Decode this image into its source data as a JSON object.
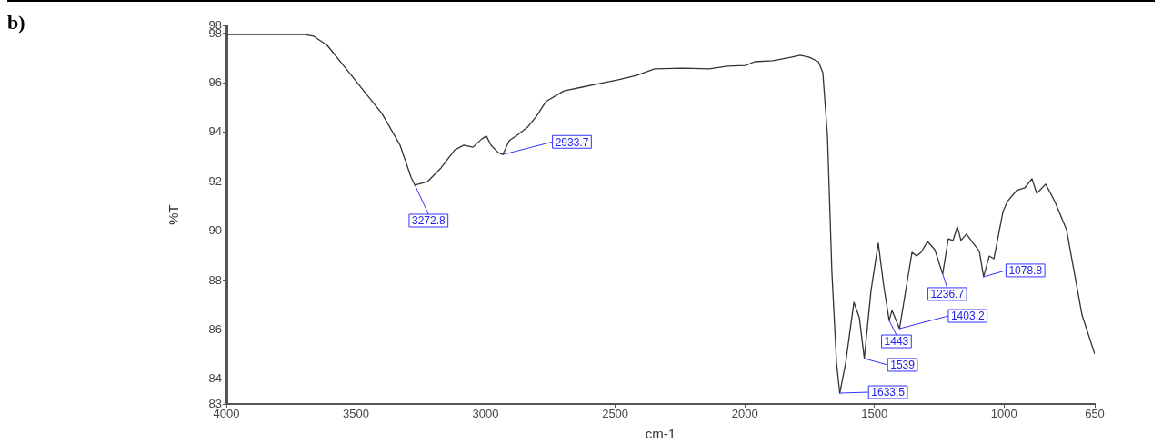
{
  "chart_data": {
    "type": "line",
    "title": "b)",
    "xlabel": "cm-1",
    "ylabel": "%T",
    "xlim": [
      4000,
      650
    ],
    "xticks": [
      4000,
      3500,
      3000,
      2500,
      2000,
      1500,
      1000,
      650
    ],
    "ylim": [
      83,
      98.33
    ],
    "yticks": [
      83,
      84,
      86,
      88,
      90,
      92,
      94,
      96,
      98,
      {
        "value": 98.33,
        "label": "98"
      }
    ],
    "series": [
      {
        "color": "#333333",
        "x": [
          4000,
          3821,
          3698,
          3663,
          3611,
          3540,
          3470,
          3400,
          3330,
          3288,
          3272.8,
          3225,
          3172,
          3119,
          3084,
          3049,
          3014,
          2997,
          2979,
          2951,
          2933.7,
          2909,
          2874,
          2839,
          2804,
          2768,
          2698,
          2628,
          2558,
          2488,
          2418,
          2348,
          2242,
          2137,
          2067,
          1997,
          1962,
          1892,
          1822,
          1786,
          1751,
          1716,
          1699,
          1681,
          1664,
          1646,
          1633.5,
          1611,
          1579,
          1558,
          1539,
          1513,
          1485,
          1464,
          1443,
          1432,
          1403.2,
          1355,
          1337,
          1320,
          1295,
          1267,
          1236.7,
          1215,
          1197,
          1180,
          1166,
          1145,
          1095,
          1078.8,
          1057,
          1039,
          1004,
          987,
          952,
          920,
          892,
          874,
          839,
          804,
          759,
          699,
          650
        ],
        "values": [
          97.96,
          97.96,
          97.96,
          97.89,
          97.52,
          96.6,
          95.68,
          94.76,
          93.48,
          92.19,
          91.86,
          92.0,
          92.56,
          93.29,
          93.48,
          93.4,
          93.74,
          93.85,
          93.48,
          93.18,
          93.1,
          93.66,
          93.92,
          94.2,
          94.65,
          95.24,
          95.68,
          95.83,
          95.98,
          96.13,
          96.3,
          96.57,
          96.6,
          96.57,
          96.68,
          96.71,
          96.86,
          96.9,
          97.04,
          97.12,
          97.04,
          96.86,
          96.42,
          93.85,
          88.33,
          84.65,
          83.44,
          84.65,
          87.12,
          86.49,
          84.84,
          87.6,
          89.51,
          87.78,
          86.38,
          86.79,
          86.05,
          89.14,
          88.99,
          89.14,
          89.58,
          89.25,
          88.26,
          89.69,
          89.62,
          90.17,
          89.62,
          89.88,
          89.18,
          88.15,
          88.99,
          88.88,
          90.79,
          91.2,
          91.64,
          91.75,
          92.12,
          91.53,
          91.9,
          91.2,
          90.06,
          86.6,
          85.02
        ]
      }
    ],
    "annotations": [
      {
        "text": "3272.8",
        "x": 3272.8,
        "y": 91.86
      },
      {
        "text": "2933.7",
        "x": 2933.7,
        "y": 93.1
      },
      {
        "text": "1633.5",
        "x": 1633.5,
        "y": 83.44
      },
      {
        "text": "1539",
        "x": 1539,
        "y": 84.84
      },
      {
        "text": "1443",
        "x": 1443,
        "y": 86.38
      },
      {
        "text": "1403.2",
        "x": 1403.2,
        "y": 86.05
      },
      {
        "text": "1236.7",
        "x": 1236.7,
        "y": 88.26
      },
      {
        "text": "1078.8",
        "x": 1078.8,
        "y": 88.15
      }
    ]
  }
}
